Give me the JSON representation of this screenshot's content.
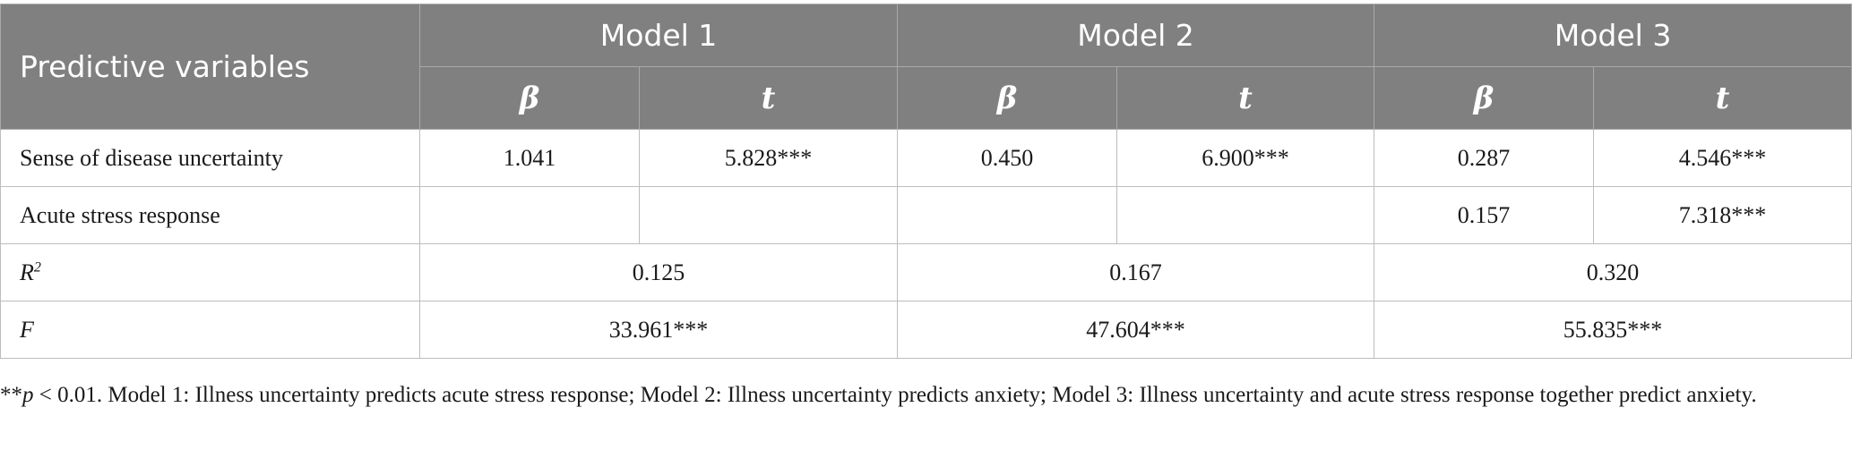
{
  "table": {
    "header": {
      "first_col": "Predictive variables",
      "models": [
        "Model 1",
        "Model 2",
        "Model 3"
      ],
      "beta": "β",
      "t": "t"
    },
    "rows": [
      {
        "label": "Sense of disease uncertainty",
        "m1_beta": "1.041",
        "m1_t": "5.828***",
        "m2_beta": "0.450",
        "m2_t": "6.900***",
        "m3_beta": "0.287",
        "m3_t": "4.546***"
      },
      {
        "label": "Acute stress response",
        "m1_beta": "",
        "m1_t": "",
        "m2_beta": "",
        "m2_t": "",
        "m3_beta": "0.157",
        "m3_t": "7.318***"
      }
    ],
    "r2": {
      "label_base": "R",
      "label_sup": "2",
      "m1": "0.125",
      "m2": "0.167",
      "m3": "0.320"
    },
    "f": {
      "label": "F",
      "m1": "33.961***",
      "m2": "47.604***",
      "m3": "55.835***"
    }
  },
  "note": {
    "stars": "**",
    "p_italic": "p",
    "text": " < 0.01. Model 1: Illness uncertainty predicts acute stress response; Model 2: Illness uncertainty predicts anxiety; Model 3: Illness uncertainty and acute stress response together predict anxiety."
  }
}
